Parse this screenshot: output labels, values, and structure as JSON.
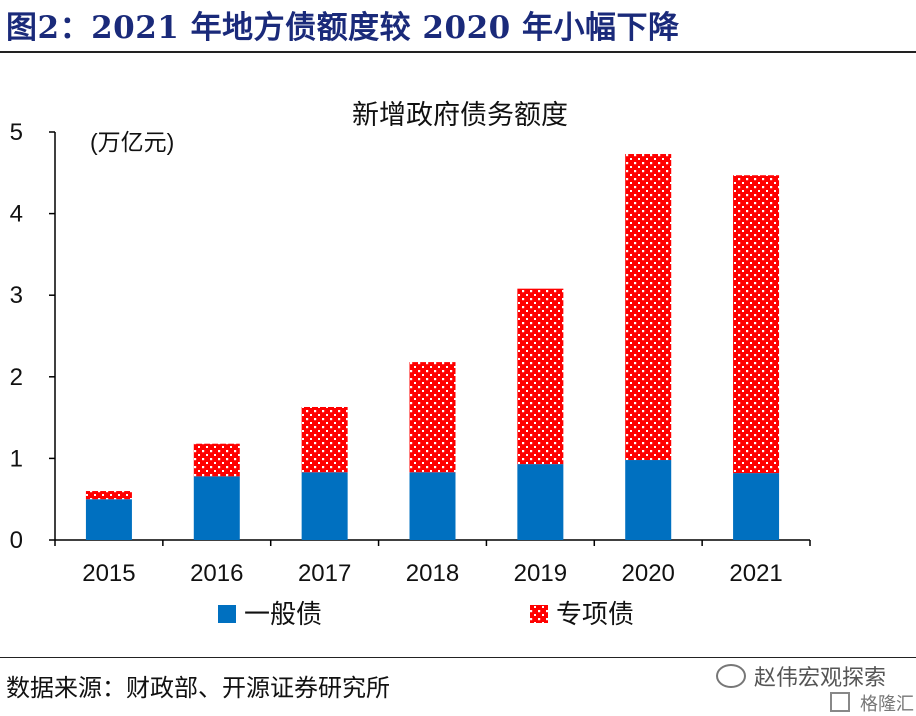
{
  "figure": {
    "title": "图2：2021 年地方债额度较 2020 年小幅下降",
    "source": "数据来源：财政部、开源证券研究所",
    "watermark": "赵伟宏观探索",
    "watermark2": "格隆汇"
  },
  "chart_data": {
    "type": "bar",
    "stacked": true,
    "title": "新增政府债务额度",
    "unit_label": "(万亿元)",
    "categories": [
      "2015",
      "2016",
      "2017",
      "2018",
      "2019",
      "2020",
      "2021"
    ],
    "series": [
      {
        "name": "一般债",
        "color": "#0070C0",
        "values": [
          0.5,
          0.78,
          0.83,
          0.83,
          0.93,
          0.98,
          0.82
        ]
      },
      {
        "name": "专项债",
        "color": "#FF0000",
        "pattern": "white-dots",
        "values": [
          0.1,
          0.4,
          0.8,
          1.35,
          2.15,
          3.75,
          3.65
        ]
      }
    ],
    "yticks": [
      0,
      1,
      2,
      3,
      4,
      5
    ],
    "ylim": [
      0,
      5
    ],
    "xlabel": "",
    "ylabel": "",
    "grid": false,
    "legend_position": "bottom"
  }
}
